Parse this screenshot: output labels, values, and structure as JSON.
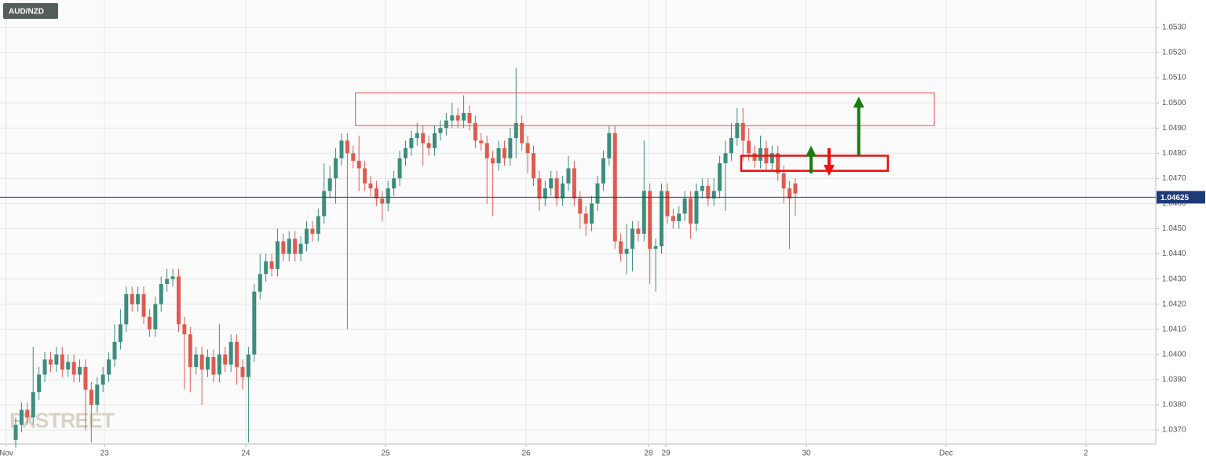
{
  "chart_data": {
    "type": "candlestick",
    "symbol": "AUD/NZD",
    "watermark": "FXSTREET",
    "up_color": "#3b8e7d",
    "down_color": "#e05a4f",
    "grid": true,
    "x": [
      0,
      1,
      2,
      3,
      4,
      5,
      6,
      7,
      8,
      9,
      10,
      11,
      12,
      13,
      14,
      15,
      16,
      17,
      18,
      19,
      20,
      21,
      22,
      23,
      24,
      25,
      26,
      27,
      28,
      29,
      30,
      31,
      32,
      33,
      34,
      35,
      36,
      37,
      38,
      39,
      40,
      41,
      42,
      43,
      44,
      45,
      46,
      47,
      48,
      49,
      50,
      51,
      52,
      53,
      54,
      55,
      56,
      57,
      58,
      59,
      60,
      61,
      62,
      63,
      64,
      65,
      66,
      67,
      68,
      69,
      70,
      71,
      72,
      73,
      74,
      75,
      76,
      77,
      78,
      79,
      80,
      81,
      82,
      83,
      84,
      85,
      86,
      87,
      88,
      89,
      90,
      91,
      92,
      93,
      94,
      95,
      96,
      97,
      98,
      99,
      100,
      101,
      102,
      103,
      104,
      105,
      106,
      107,
      108,
      109,
      110,
      111,
      112,
      113,
      114,
      115,
      116,
      117,
      118,
      119,
      120,
      121,
      122,
      123,
      124,
      125,
      126,
      127,
      128,
      129,
      130,
      131,
      132,
      133,
      134
    ],
    "open": [
      1.0366,
      1.0372,
      1.0378,
      1.0375,
      1.0385,
      1.0392,
      1.0398,
      1.0396,
      1.04,
      1.0394,
      1.0397,
      1.0392,
      1.0395,
      1.0386,
      1.038,
      1.0388,
      1.0392,
      1.0398,
      1.0405,
      1.0412,
      1.0424,
      1.042,
      1.0424,
      1.0415,
      1.041,
      1.042,
      1.0428,
      1.043,
      1.0431,
      1.0412,
      1.0408,
      1.0395,
      1.04,
      1.0394,
      1.0399,
      1.0392,
      1.04,
      1.0396,
      1.0405,
      1.0395,
      1.0391,
      1.04,
      1.0425,
      1.0432,
      1.0437,
      1.0434,
      1.0445,
      1.044,
      1.0446,
      1.044,
      1.0444,
      1.045,
      1.0448,
      1.0455,
      1.0465,
      1.047,
      1.0478,
      1.0485,
      1.048,
      1.0477,
      1.0474,
      1.0468,
      1.0466,
      1.0462,
      1.046,
      1.0466,
      1.047,
      1.0478,
      1.0482,
      1.0486,
      1.0488,
      1.0484,
      1.0482,
      1.0488,
      1.049,
      1.0493,
      1.0495,
      1.0493,
      1.0496,
      1.0492,
      1.0485,
      1.0484,
      1.0478,
      1.0476,
      1.0482,
      1.0478,
      1.0486,
      1.0492,
      1.0484,
      1.048,
      1.047,
      1.0462,
      1.0466,
      1.047,
      1.0462,
      1.0468,
      1.0474,
      1.0462,
      1.0456,
      1.0452,
      1.046,
      1.0468,
      1.0478,
      1.0488,
      1.0445,
      1.044,
      1.0442,
      1.045,
      1.0448,
      1.0465,
      1.0442,
      1.0443,
      1.0465,
      1.0455,
      1.0453,
      1.0456,
      1.0462,
      1.0452,
      1.0465,
      1.0467,
      1.0462,
      1.0465,
      1.0476,
      1.048,
      1.0486,
      1.0492,
      1.0485,
      1.048,
      1.0477,
      1.0482,
      1.0476,
      1.048,
      1.0472,
      1.0466,
      1.0468
    ],
    "high": [
      1.0375,
      1.0381,
      1.0381,
      1.0403,
      1.0395,
      1.0401,
      1.0401,
      1.0403,
      1.0403,
      1.04,
      1.04,
      1.0398,
      1.0398,
      1.0389,
      1.0391,
      1.0395,
      1.0401,
      1.0412,
      1.0418,
      1.0427,
      1.0427,
      1.0427,
      1.0427,
      1.0418,
      1.0423,
      1.0431,
      1.0434,
      1.0434,
      1.0434,
      1.0415,
      1.0411,
      1.0403,
      1.0403,
      1.0402,
      1.0402,
      1.0412,
      1.0403,
      1.0408,
      1.0408,
      1.0398,
      1.0403,
      1.0428,
      1.044,
      1.044,
      1.044,
      1.045,
      1.0448,
      1.0449,
      1.0449,
      1.0447,
      1.0453,
      1.0453,
      1.0458,
      1.0476,
      1.0475,
      1.0482,
      1.0488,
      1.0488,
      1.0483,
      1.0487,
      1.0477,
      1.0471,
      1.0469,
      1.0465,
      1.0469,
      1.0473,
      1.0481,
      1.0485,
      1.0489,
      1.0492,
      1.0491,
      1.0487,
      1.0491,
      1.0493,
      1.0496,
      1.05,
      1.0498,
      1.0503,
      1.0499,
      1.0495,
      1.0488,
      1.0487,
      1.0481,
      1.0485,
      1.0485,
      1.049,
      1.0514,
      1.0495,
      1.0487,
      1.0483,
      1.0473,
      1.0469,
      1.0473,
      1.0473,
      1.0471,
      1.0479,
      1.0477,
      1.0465,
      1.0459,
      1.0463,
      1.0471,
      1.0481,
      1.0491,
      1.0491,
      1.0448,
      1.0452,
      1.0453,
      1.0453,
      1.0485,
      1.0468,
      1.0446,
      1.0468,
      1.0468,
      1.0458,
      1.0459,
      1.0465,
      1.0465,
      1.0468,
      1.047,
      1.047,
      1.047,
      1.0479,
      1.0485,
      1.0492,
      1.0498,
      1.0498,
      1.049,
      1.0483,
      1.0487,
      1.0485,
      1.0483,
      1.0483,
      1.0475,
      1.0469,
      1.047
    ],
    "low": [
      1.0363,
      1.0369,
      1.0372,
      1.0372,
      1.0382,
      1.0389,
      1.0393,
      1.0393,
      1.0391,
      1.0391,
      1.0389,
      1.0389,
      1.037,
      1.0365,
      1.0377,
      1.0385,
      1.0389,
      1.0395,
      1.0402,
      1.0409,
      1.0417,
      1.0417,
      1.0412,
      1.0407,
      1.0407,
      1.0417,
      1.0425,
      1.0427,
      1.0409,
      1.0386,
      1.0385,
      1.0392,
      1.038,
      1.0391,
      1.0389,
      1.0389,
      1.0393,
      1.0393,
      1.0388,
      1.0386,
      1.0365,
      1.0397,
      1.0422,
      1.0429,
      1.0431,
      1.0431,
      1.0437,
      1.0437,
      1.0437,
      1.0437,
      1.0441,
      1.0445,
      1.0445,
      1.0452,
      1.0462,
      1.046,
      1.0475,
      1.041,
      1.0474,
      1.0465,
      1.0465,
      1.0463,
      1.0459,
      1.0453,
      1.0457,
      1.0463,
      1.0467,
      1.0475,
      1.0479,
      1.0483,
      1.0475,
      1.0479,
      1.0479,
      1.0485,
      1.0487,
      1.049,
      1.049,
      1.049,
      1.0489,
      1.0482,
      1.0481,
      1.046,
      1.0455,
      1.0473,
      1.0475,
      1.0475,
      1.0478,
      1.0481,
      1.0472,
      1.0467,
      1.0457,
      1.0459,
      1.0463,
      1.0459,
      1.0459,
      1.0465,
      1.0459,
      1.045,
      1.0447,
      1.0449,
      1.0457,
      1.0465,
      1.0475,
      1.0442,
      1.0437,
      1.0432,
      1.0433,
      1.0445,
      1.0445,
      1.0428,
      1.0425,
      1.044,
      1.0452,
      1.045,
      1.045,
      1.0453,
      1.0446,
      1.0449,
      1.0462,
      1.0459,
      1.0459,
      1.0462,
      1.0457,
      1.0477,
      1.0483,
      1.0477,
      1.0477,
      1.0474,
      1.0474,
      1.0473,
      1.0473,
      1.0469,
      1.046,
      1.0442,
      1.0455
    ],
    "close": [
      1.0372,
      1.0378,
      1.0375,
      1.0385,
      1.0392,
      1.0398,
      1.0396,
      1.04,
      1.0394,
      1.0397,
      1.0392,
      1.0395,
      1.0386,
      1.038,
      1.0388,
      1.0392,
      1.0398,
      1.0405,
      1.0412,
      1.0424,
      1.042,
      1.0424,
      1.0415,
      1.041,
      1.042,
      1.0428,
      1.043,
      1.0431,
      1.0412,
      1.0408,
      1.0395,
      1.04,
      1.0394,
      1.0399,
      1.0392,
      1.04,
      1.0396,
      1.0405,
      1.0395,
      1.0391,
      1.04,
      1.0425,
      1.0432,
      1.0437,
      1.0434,
      1.0445,
      1.044,
      1.0446,
      1.044,
      1.0444,
      1.045,
      1.0448,
      1.0455,
      1.0465,
      1.047,
      1.0478,
      1.0485,
      1.048,
      1.0477,
      1.0474,
      1.0468,
      1.0466,
      1.0462,
      1.046,
      1.0466,
      1.047,
      1.0478,
      1.0482,
      1.0486,
      1.0488,
      1.0484,
      1.0482,
      1.0488,
      1.049,
      1.0493,
      1.0495,
      1.0493,
      1.0496,
      1.0492,
      1.0485,
      1.0484,
      1.0478,
      1.0476,
      1.0482,
      1.0478,
      1.0486,
      1.0492,
      1.0484,
      1.048,
      1.047,
      1.0462,
      1.0466,
      1.047,
      1.0462,
      1.0468,
      1.0474,
      1.0462,
      1.0456,
      1.0452,
      1.046,
      1.0468,
      1.0478,
      1.0488,
      1.0445,
      1.044,
      1.0442,
      1.045,
      1.0448,
      1.0465,
      1.0442,
      1.0443,
      1.0465,
      1.0455,
      1.0453,
      1.0456,
      1.0462,
      1.0452,
      1.0465,
      1.0467,
      1.0462,
      1.0465,
      1.0476,
      1.048,
      1.0486,
      1.0492,
      1.0485,
      1.048,
      1.0477,
      1.0482,
      1.0476,
      1.048,
      1.0472,
      1.0466,
      1.0462,
      1.0464
    ],
    "xlim": [
      -2.7,
      195.95
    ],
    "xticks": [
      {
        "value": -1.62,
        "label": "Nov"
      },
      {
        "value": 15.25,
        "label": "23"
      },
      {
        "value": 39.54,
        "label": "24"
      },
      {
        "value": 63.56,
        "label": "25"
      },
      {
        "value": 87.72,
        "label": "26"
      },
      {
        "value": 108.77,
        "label": "28"
      },
      {
        "value": 111.74,
        "label": "29"
      },
      {
        "value": 135.9,
        "label": "30"
      },
      {
        "value": 159.9,
        "label": "Dec"
      },
      {
        "value": 183.94,
        "label": "2"
      }
    ],
    "ylim": [
      1.03644,
      1.05409
    ],
    "yticks": [
      {
        "value": 1.037,
        "label": "1.0370"
      },
      {
        "value": 1.038,
        "label": "1.0380"
      },
      {
        "value": 1.039,
        "label": "1.0390"
      },
      {
        "value": 1.04,
        "label": "1.0400"
      },
      {
        "value": 1.041,
        "label": "1.0410"
      },
      {
        "value": 1.042,
        "label": "1.0420"
      },
      {
        "value": 1.043,
        "label": "1.0430"
      },
      {
        "value": 1.044,
        "label": "1.0440"
      },
      {
        "value": 1.045,
        "label": "1.0450"
      },
      {
        "value": 1.046,
        "label": "1.0460"
      },
      {
        "value": 1.047,
        "label": "1.0470"
      },
      {
        "value": 1.048,
        "label": "1.0480"
      },
      {
        "value": 1.049,
        "label": "1.0490"
      },
      {
        "value": 1.05,
        "label": "1.0500"
      },
      {
        "value": 1.051,
        "label": "1.0510"
      },
      {
        "value": 1.052,
        "label": "1.0520"
      },
      {
        "value": 1.053,
        "label": "1.0530"
      }
    ],
    "price_line": {
      "value": 1.04625,
      "label": "1.04625",
      "color": "#1f3a78"
    },
    "zones": [
      {
        "x": [
          58.4,
          157.9
        ],
        "y": [
          1.0491,
          1.0504
        ],
        "color": "#e8464a",
        "width": 1
      },
      {
        "x": [
          124.7,
          149.9
        ],
        "y": [
          1.0473,
          1.0479
        ],
        "color": "#e8100e",
        "width": 2.5
      }
    ],
    "arrows": [
      {
        "x": 136.7,
        "from": 1.0472,
        "to": 1.0483,
        "color": "#1a7d0f"
      },
      {
        "x": 139.8,
        "from": 1.0482,
        "to": 1.0471,
        "color": "#f01010"
      },
      {
        "x": 144.9,
        "from": 1.0479,
        "to": 1.05025,
        "color": "#1a7d0f"
      }
    ]
  }
}
